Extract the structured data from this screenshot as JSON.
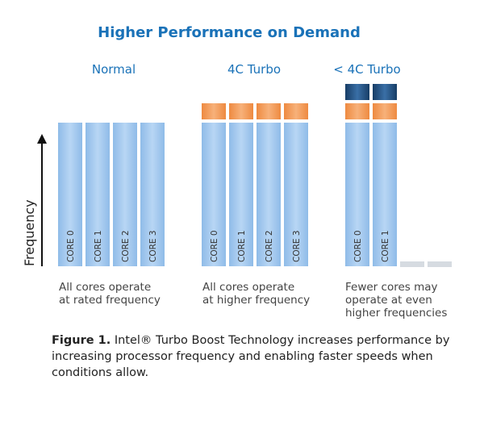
{
  "title": "Higher Performance on Demand",
  "axis": {
    "label": "Frequency"
  },
  "groups": [
    {
      "label": "Normal",
      "caption": [
        "All cores operate",
        "at rated frequency"
      ]
    },
    {
      "label": "4C Turbo",
      "caption": [
        "All cores operate",
        "at higher frequency"
      ]
    },
    {
      "label": "< 4C Turbo",
      "caption": [
        "Fewer cores may",
        "operate at even",
        "higher frequencies"
      ]
    }
  ],
  "cores": {
    "normal": [
      "CORE 0",
      "CORE 1",
      "CORE 2",
      "CORE 3"
    ],
    "turbo4": [
      "CORE 0",
      "CORE 1",
      "CORE 2",
      "CORE 3"
    ],
    "turbo_lt4": [
      "CORE 0",
      "CORE 1"
    ]
  },
  "figure": {
    "number": "Figure 1.",
    "text": " Intel® Turbo Boost Technology increases performance by increasing processor frequency and enabling faster speeds when conditions allow."
  },
  "colors": {
    "title": "#1a72b8",
    "core_fill": "#a9cbee",
    "core_edge": "#7fb0e0",
    "turbo_block": "#f29a58",
    "extra_turbo_block": "#1f4f82",
    "inactive_core": "#d9dde2"
  }
}
